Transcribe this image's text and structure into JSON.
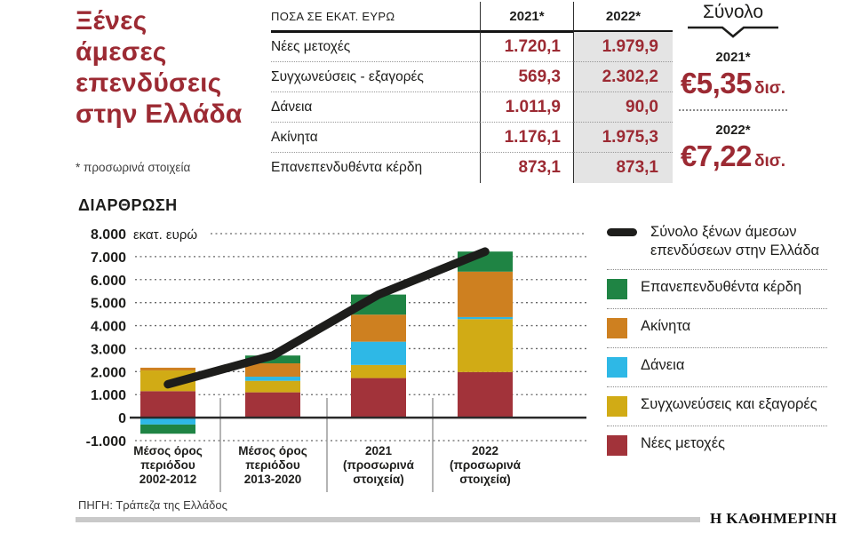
{
  "header": {
    "title_lines": [
      "Ξένες",
      "άμεσες",
      "επενδύσεις",
      "στην Ελλάδα"
    ],
    "footnote": "* προσωρινά στοιχεία"
  },
  "table": {
    "unit_header": "ΠΟΣΑ ΣΕ ΕΚΑΤ. ΕΥΡΩ",
    "col_headers": [
      "2021*",
      "2022*"
    ],
    "rows": [
      {
        "label": "Νέες μετοχές",
        "v2021": "1.720,1",
        "v2022": "1.979,9"
      },
      {
        "label": "Συγχωνεύσεις - εξαγορές",
        "v2021": "569,3",
        "v2022": "2.302,2"
      },
      {
        "label": "Δάνεια",
        "v2021": "1.011,9",
        "v2022": "90,0"
      },
      {
        "label": "Ακίνητα",
        "v2021": "1.176,1",
        "v2022": "1.975,3"
      },
      {
        "label": "Επανεπενδυθέντα κέρδη",
        "v2021": "873,1",
        "v2022": "873,1"
      }
    ]
  },
  "totals": {
    "heading": "Σύνολο",
    "items": [
      {
        "year": "2021*",
        "currency": "€",
        "value": "5,35",
        "unit": "δισ."
      },
      {
        "year": "2022*",
        "currency": "€",
        "value": "7,22",
        "unit": "δισ."
      }
    ]
  },
  "chart": {
    "heading": "ΔΙΑΡΘΡΩΣΗ"
  },
  "chart_data": {
    "type": "bar",
    "stacked": true,
    "title": "ΔΙΑΡΘΡΩΣΗ",
    "ylabel": "εκατ. ευρώ",
    "ylim": [
      -1000,
      8000
    ],
    "grid": true,
    "legend_position": "right",
    "ytick_values": [
      8000,
      7000,
      6000,
      5000,
      4000,
      3000,
      2000,
      1000,
      0,
      -1000
    ],
    "ytick_labels": [
      "8.000",
      "7.000",
      "6.000",
      "5.000",
      "4.000",
      "3.000",
      "2.000",
      "1.000",
      "0",
      "-1.000"
    ],
    "categories": [
      [
        "Μέσος όρος",
        "περιόδου",
        "2002-2012"
      ],
      [
        "Μέσος όρος",
        "περιόδου",
        "2013-2020"
      ],
      [
        "2021",
        "(προσωρινά",
        "στοιχεία)"
      ],
      [
        "2022",
        "(προσωρινά",
        "στοιχεία)"
      ]
    ],
    "series": [
      {
        "name": "Νέες μετοχές",
        "color": "#a2333a",
        "values": [
          1150,
          1100,
          1720.1,
          1979.9
        ]
      },
      {
        "name": "Συγχωνεύσεις και εξαγορές",
        "color": "#d1ab15",
        "values": [
          900,
          500,
          569.3,
          2302.2
        ]
      },
      {
        "name": "Δάνεια",
        "color": "#2eb8e6",
        "values": [
          -300,
          180,
          1011.9,
          90.0
        ]
      },
      {
        "name": "Ακίνητα",
        "color": "#ce8020",
        "values": [
          120,
          580,
          1176.1,
          1975.3
        ]
      },
      {
        "name": "Επανεπενδυθέντα κέρδη",
        "color": "#1f8444",
        "values": [
          -400,
          340,
          873.1,
          873.1
        ]
      }
    ],
    "line_series": {
      "name": "Σύνολο ξένων άμεσων επενδύσεων στην Ελλάδα",
      "color": "#1d1d1b",
      "values": [
        1450,
        2700,
        5351.5,
        7220.5
      ]
    }
  },
  "legend": {
    "items": [
      {
        "swatch": "line",
        "color": "#1d1d1b",
        "label": "Σύνολο ξένων άμεσων επενδύσεων στην Ελλάδα"
      },
      {
        "swatch": "box",
        "color": "#1f8444",
        "label": "Επανεπενδυθέντα κέρδη"
      },
      {
        "swatch": "box",
        "color": "#ce8020",
        "label": "Ακίνητα"
      },
      {
        "swatch": "box",
        "color": "#2eb8e6",
        "label": "Δάνεια"
      },
      {
        "swatch": "box",
        "color": "#d1ab15",
        "label": "Συγχωνεύσεις και εξαγορές"
      },
      {
        "swatch": "box",
        "color": "#a2333a",
        "label": "Νέες μετοχές"
      }
    ]
  },
  "footer": {
    "source": "ΠΗΓΗ: Τράπεζα της Ελλάδος",
    "brand": "Η ΚΑΘΗΜΕΡΙΝΗ"
  },
  "colors": {
    "accent_red": "#9c2a33",
    "table_shaded_column": "#e4e4e4",
    "axis": "#2a2a2a",
    "gridline": "#666666",
    "footer_bar": "#c9c9c9"
  }
}
